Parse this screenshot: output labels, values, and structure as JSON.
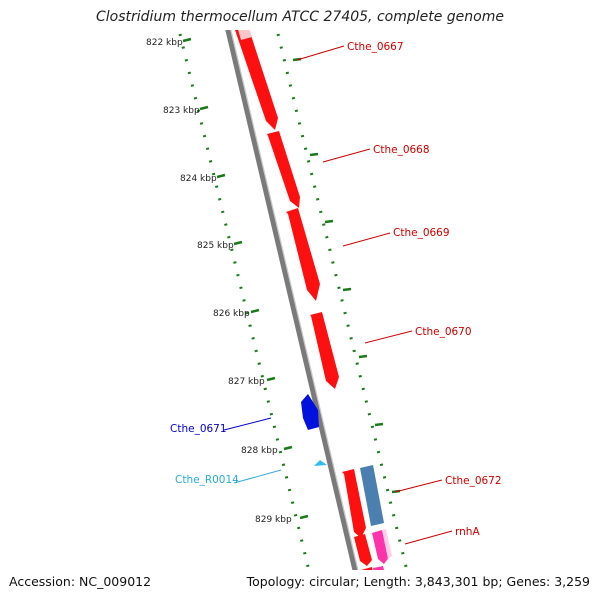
{
  "title": "Clostridium thermocellum ATCC 27405, complete genome",
  "footer": {
    "accession": "Accession: NC_009012",
    "summary": "Topology: circular; Length: 3,843,301 bp; Genes: 3,259"
  },
  "scale_labels": [
    "822 kbp",
    "823 kbp",
    "824 kbp",
    "825 kbp",
    "826 kbp",
    "827 kbp",
    "828 kbp",
    "829 kbp"
  ],
  "gene_labels": {
    "cthe_0667": "Cthe_0667",
    "cthe_0668": "Cthe_0668",
    "cthe_0669": "Cthe_0669",
    "cthe_0670": "Cthe_0670",
    "cthe_0671": "Cthe_0671",
    "cthe_r0014": "Cthe_R0014",
    "cthe_0672": "Cthe_0672",
    "rnha": "rnhA"
  },
  "colors": {
    "forward_gene": "#ff0000",
    "reverse_gene": "#0000ee",
    "rna_gene": "#33bbee",
    "steel_gene": "#4a7fb0",
    "pink_gene": "#ff33aa",
    "scale_ticks": "#1a7a1a",
    "backbone": "#888888"
  }
}
